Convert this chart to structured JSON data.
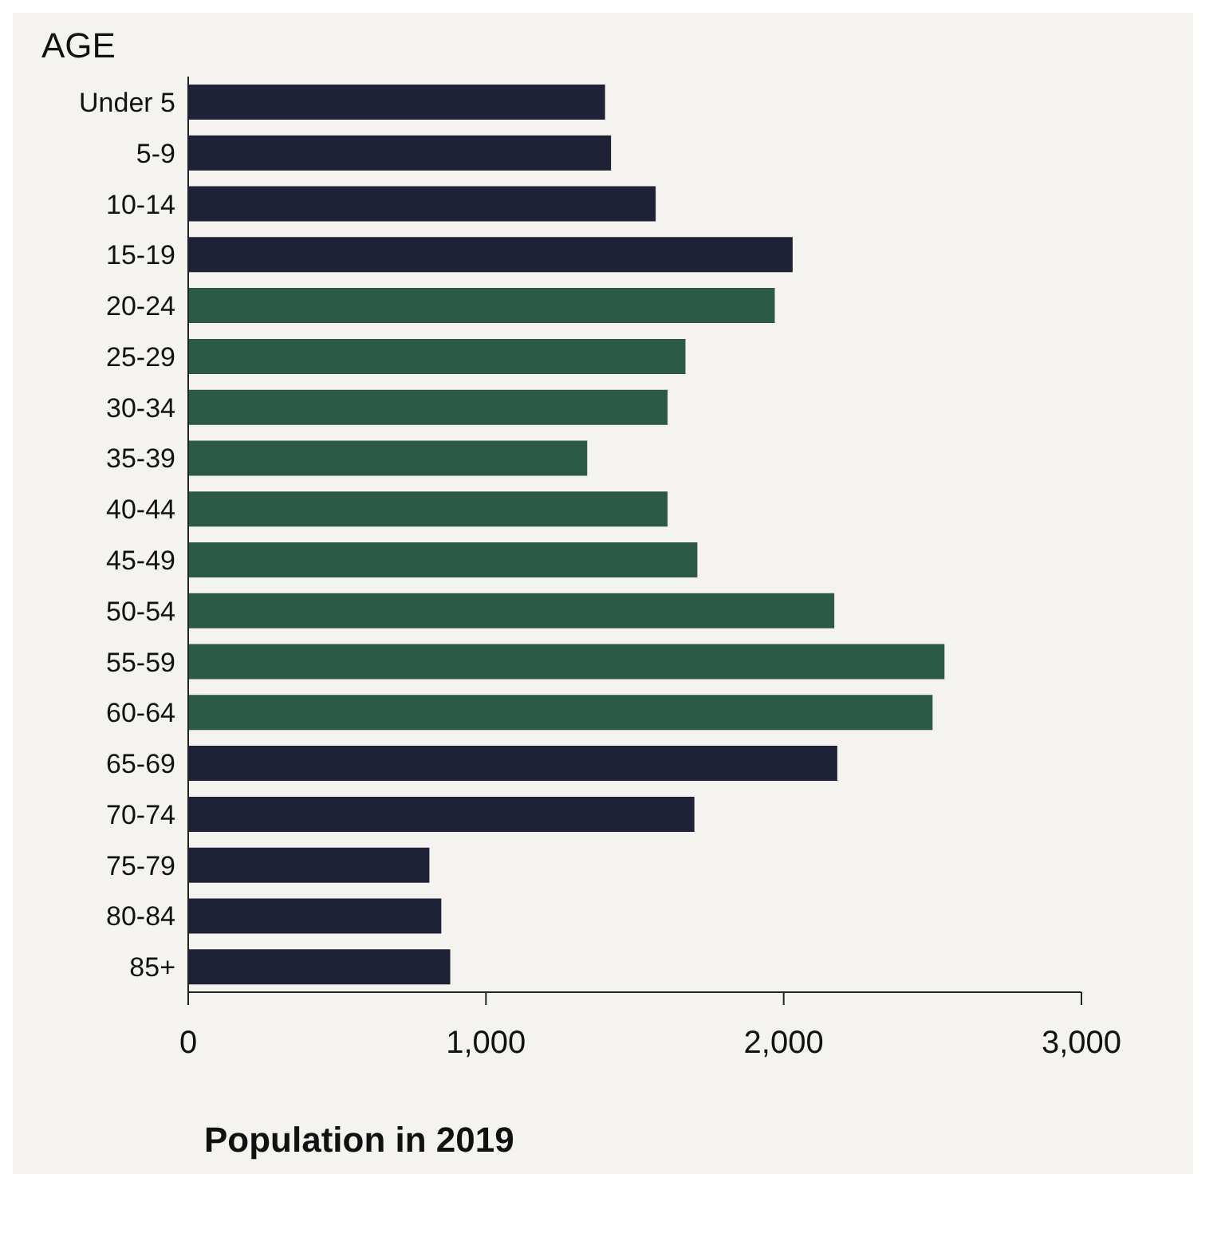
{
  "chart_data": {
    "type": "bar",
    "orientation": "horizontal",
    "ylabel": "AGE",
    "xlabel": "Population in 2019",
    "categories": [
      "Under 5",
      "5-9",
      "10-14",
      "15-19",
      "20-24",
      "25-29",
      "30-34",
      "35-39",
      "40-44",
      "45-49",
      "50-54",
      "55-59",
      "60-64",
      "65-69",
      "70-74",
      "75-79",
      "80-84",
      "85+"
    ],
    "values": [
      1400,
      1420,
      1570,
      2030,
      1970,
      1670,
      1610,
      1340,
      1610,
      1710,
      2170,
      2540,
      2500,
      2180,
      1700,
      810,
      850,
      880
    ],
    "colors": [
      "#1f2237",
      "#1f2237",
      "#1f2237",
      "#1f2237",
      "#2b5a48",
      "#2b5a48",
      "#2b5a48",
      "#2b5a48",
      "#2b5a48",
      "#2b5a48",
      "#2b5a48",
      "#2b5a48",
      "#2b5a48",
      "#1f2237",
      "#1f2237",
      "#1f2237",
      "#1f2237",
      "#1f2237"
    ],
    "xlim": [
      0,
      3000
    ],
    "xticks": [
      0,
      {
        "value": 1000,
        "label": "1,000"
      },
      {
        "value": 2000,
        "label": "2,000"
      },
      {
        "value": 3000,
        "label": "3,000"
      }
    ],
    "grid": false
  }
}
